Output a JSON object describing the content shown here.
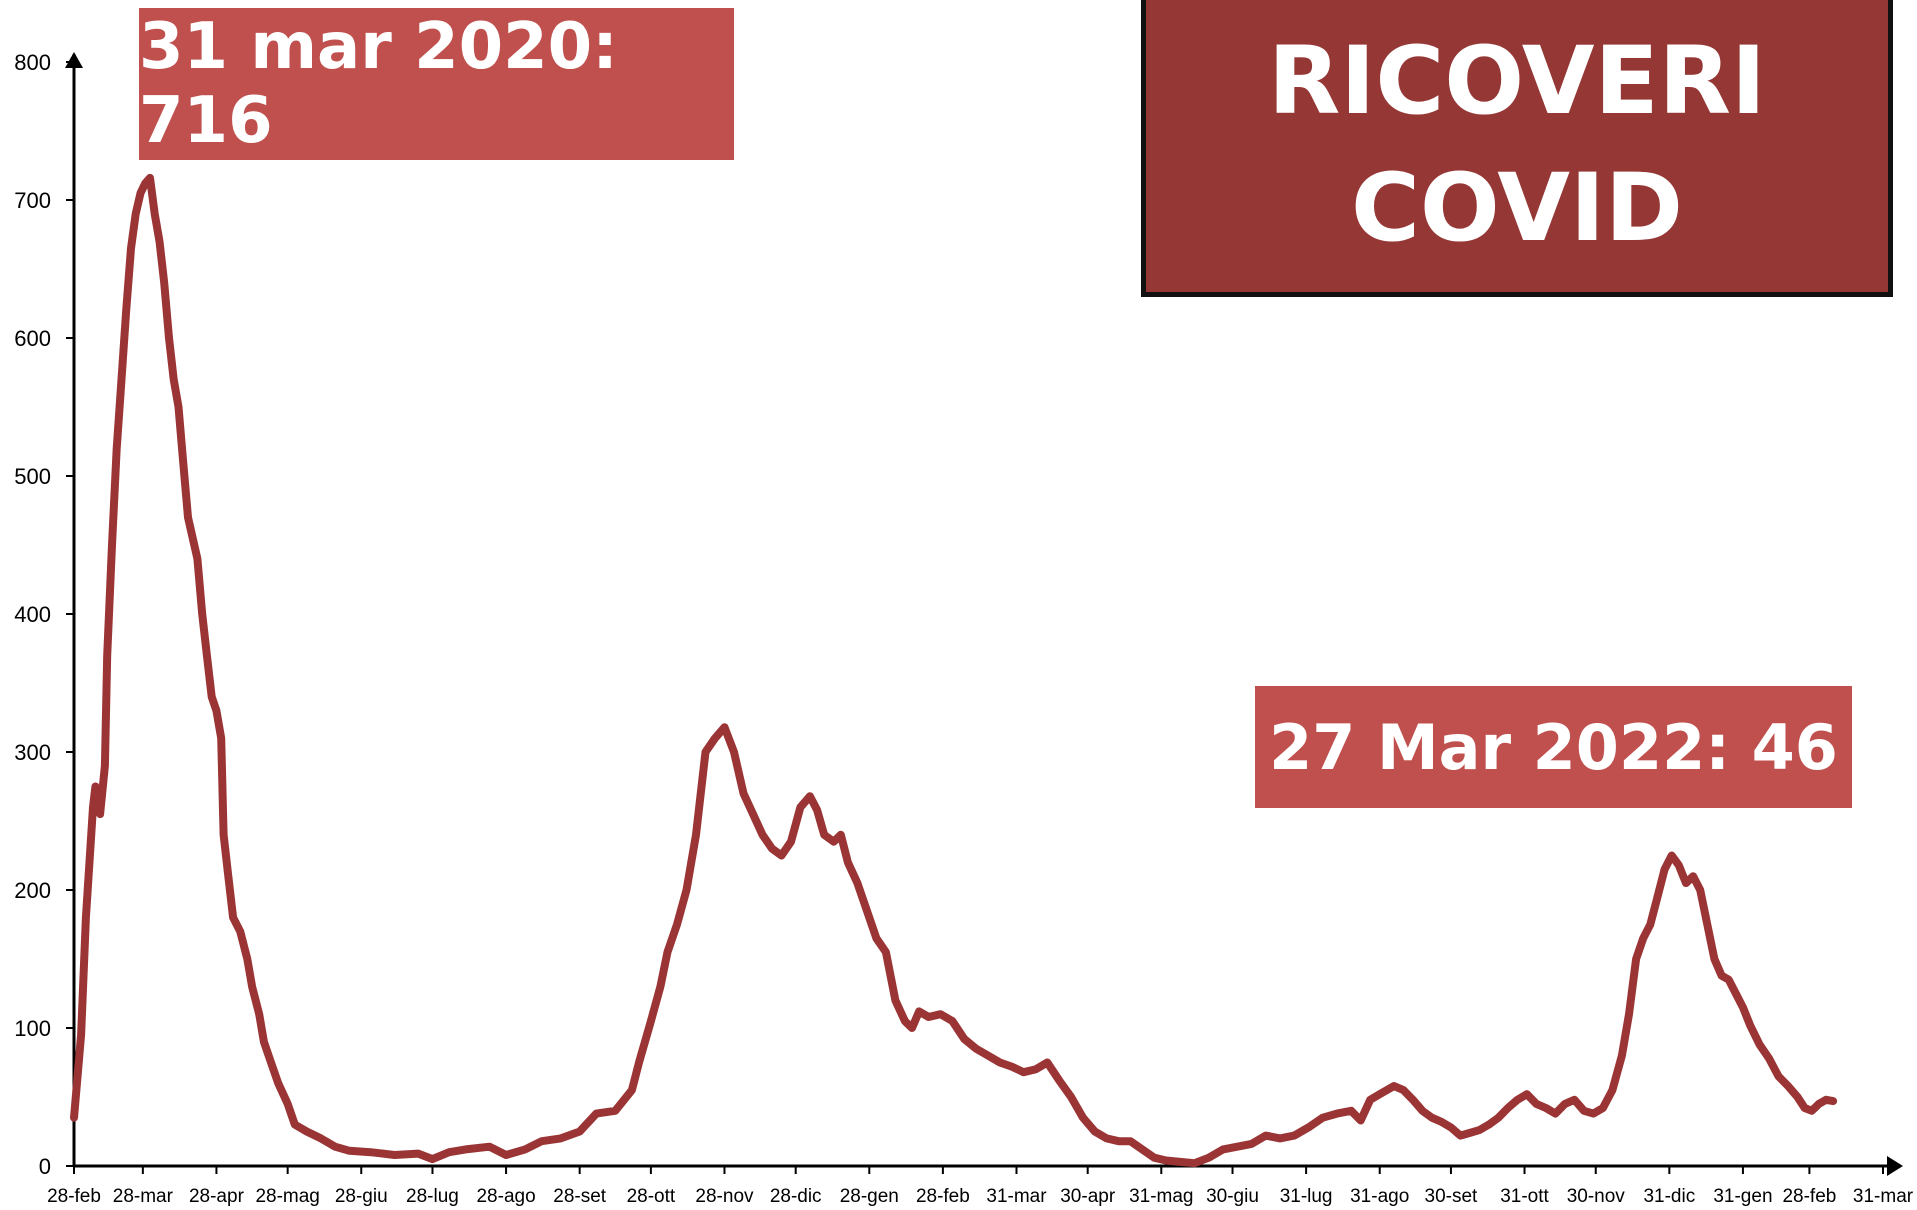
{
  "title": {
    "line1": "RICOVERI",
    "line2": "COVID"
  },
  "annotations": {
    "peak": {
      "label": "31 mar 2020: 716",
      "date_index": 32,
      "value": 716
    },
    "last": {
      "label": "27 Mar 2022: 46",
      "date_index": 758,
      "value": 46
    }
  },
  "colors": {
    "line": "#9b3535",
    "peak_box": "#c0504d",
    "last_box": "#c0504d",
    "title_box": "#953735",
    "axis": "#000000"
  },
  "chart_data": {
    "type": "line",
    "title": "RICOVERI COVID",
    "xlabel": "",
    "ylabel": "",
    "ylim": [
      0,
      800
    ],
    "yticks": [
      0,
      100,
      200,
      300,
      400,
      500,
      600,
      700,
      800
    ],
    "xlim_days": [
      0,
      762
    ],
    "grid": false,
    "x_tick_labels": [
      {
        "label": "28-feb",
        "day": 0
      },
      {
        "label": "28-mar",
        "day": 29
      },
      {
        "label": "28-apr",
        "day": 60
      },
      {
        "label": "28-mag",
        "day": 90
      },
      {
        "label": "28-giu",
        "day": 121
      },
      {
        "label": "28-lug",
        "day": 151
      },
      {
        "label": "28-ago",
        "day": 182
      },
      {
        "label": "28-set",
        "day": 213
      },
      {
        "label": "28-ott",
        "day": 243
      },
      {
        "label": "28-nov",
        "day": 274
      },
      {
        "label": "28-dic",
        "day": 304
      },
      {
        "label": "28-gen",
        "day": 335
      },
      {
        "label": "28-feb",
        "day": 366
      },
      {
        "label": "31-mar",
        "day": 397
      },
      {
        "label": "30-apr",
        "day": 427
      },
      {
        "label": "31-mag",
        "day": 458
      },
      {
        "label": "30-giu",
        "day": 488
      },
      {
        "label": "31-lug",
        "day": 519
      },
      {
        "label": "31-ago",
        "day": 550
      },
      {
        "label": "30-set",
        "day": 580
      },
      {
        "label": "31-ott",
        "day": 611
      },
      {
        "label": "30-nov",
        "day": 641
      },
      {
        "label": "31-dic",
        "day": 672
      },
      {
        "label": "31-gen",
        "day": 703
      },
      {
        "label": "28-feb",
        "day": 731
      },
      {
        "label": "31-mar",
        "day": 762
      }
    ],
    "series": [
      {
        "values": [
          [
            0,
            35
          ],
          [
            3,
            95
          ],
          [
            5,
            180
          ],
          [
            8,
            260
          ],
          [
            9,
            275
          ],
          [
            11,
            255
          ],
          [
            13,
            290
          ],
          [
            14,
            370
          ],
          [
            16,
            450
          ],
          [
            18,
            520
          ],
          [
            20,
            570
          ],
          [
            22,
            620
          ],
          [
            24,
            665
          ],
          [
            26,
            690
          ],
          [
            28,
            705
          ],
          [
            30,
            712
          ],
          [
            32,
            716
          ],
          [
            34,
            690
          ],
          [
            36,
            670
          ],
          [
            38,
            640
          ],
          [
            40,
            600
          ],
          [
            42,
            570
          ],
          [
            44,
            550
          ],
          [
            46,
            510
          ],
          [
            48,
            470
          ],
          [
            50,
            455
          ],
          [
            52,
            440
          ],
          [
            54,
            400
          ],
          [
            56,
            370
          ],
          [
            58,
            340
          ],
          [
            60,
            330
          ],
          [
            62,
            310
          ],
          [
            63,
            240
          ],
          [
            65,
            210
          ],
          [
            67,
            180
          ],
          [
            70,
            170
          ],
          [
            73,
            150
          ],
          [
            75,
            130
          ],
          [
            78,
            110
          ],
          [
            80,
            90
          ],
          [
            83,
            75
          ],
          [
            86,
            60
          ],
          [
            90,
            45
          ],
          [
            93,
            30
          ],
          [
            98,
            25
          ],
          [
            104,
            20
          ],
          [
            110,
            14
          ],
          [
            116,
            11
          ],
          [
            125,
            10
          ],
          [
            135,
            8
          ],
          [
            145,
            9
          ],
          [
            151,
            5
          ],
          [
            158,
            10
          ],
          [
            165,
            12
          ],
          [
            175,
            14
          ],
          [
            182,
            8
          ],
          [
            190,
            12
          ],
          [
            197,
            18
          ],
          [
            205,
            20
          ],
          [
            213,
            25
          ],
          [
            220,
            38
          ],
          [
            228,
            40
          ],
          [
            235,
            55
          ],
          [
            238,
            75
          ],
          [
            243,
            105
          ],
          [
            247,
            130
          ],
          [
            250,
            155
          ],
          [
            254,
            175
          ],
          [
            258,
            200
          ],
          [
            262,
            240
          ],
          [
            266,
            300
          ],
          [
            270,
            310
          ],
          [
            274,
            318
          ],
          [
            278,
            300
          ],
          [
            282,
            270
          ],
          [
            286,
            255
          ],
          [
            290,
            240
          ],
          [
            294,
            230
          ],
          [
            298,
            225
          ],
          [
            302,
            235
          ],
          [
            306,
            260
          ],
          [
            310,
            268
          ],
          [
            313,
            258
          ],
          [
            316,
            240
          ],
          [
            320,
            235
          ],
          [
            323,
            240
          ],
          [
            326,
            220
          ],
          [
            330,
            205
          ],
          [
            334,
            185
          ],
          [
            338,
            165
          ],
          [
            342,
            155
          ],
          [
            346,
            120
          ],
          [
            350,
            105
          ],
          [
            353,
            100
          ],
          [
            356,
            112
          ],
          [
            360,
            108
          ],
          [
            365,
            110
          ],
          [
            370,
            105
          ],
          [
            375,
            92
          ],
          [
            380,
            85
          ],
          [
            385,
            80
          ],
          [
            390,
            75
          ],
          [
            395,
            72
          ],
          [
            400,
            68
          ],
          [
            405,
            70
          ],
          [
            410,
            75
          ],
          [
            415,
            62
          ],
          [
            420,
            50
          ],
          [
            425,
            35
          ],
          [
            430,
            25
          ],
          [
            435,
            20
          ],
          [
            440,
            18
          ],
          [
            445,
            18
          ],
          [
            450,
            12
          ],
          [
            455,
            6
          ],
          [
            460,
            4
          ],
          [
            466,
            3
          ],
          [
            472,
            2
          ],
          [
            478,
            6
          ],
          [
            484,
            12
          ],
          [
            490,
            14
          ],
          [
            496,
            16
          ],
          [
            502,
            22
          ],
          [
            508,
            20
          ],
          [
            514,
            22
          ],
          [
            520,
            28
          ],
          [
            526,
            35
          ],
          [
            532,
            38
          ],
          [
            538,
            40
          ],
          [
            542,
            33
          ],
          [
            546,
            48
          ],
          [
            550,
            52
          ],
          [
            556,
            58
          ],
          [
            560,
            55
          ],
          [
            564,
            48
          ],
          [
            568,
            40
          ],
          [
            572,
            35
          ],
          [
            576,
            32
          ],
          [
            580,
            28
          ],
          [
            584,
            22
          ],
          [
            588,
            24
          ],
          [
            592,
            26
          ],
          [
            596,
            30
          ],
          [
            600,
            35
          ],
          [
            604,
            42
          ],
          [
            608,
            48
          ],
          [
            612,
            52
          ],
          [
            616,
            45
          ],
          [
            620,
            42
          ],
          [
            624,
            38
          ],
          [
            628,
            45
          ],
          [
            632,
            48
          ],
          [
            636,
            40
          ],
          [
            640,
            38
          ],
          [
            644,
            42
          ],
          [
            648,
            55
          ],
          [
            652,
            80
          ],
          [
            655,
            110
          ],
          [
            658,
            150
          ],
          [
            661,
            165
          ],
          [
            664,
            175
          ],
          [
            667,
            195
          ],
          [
            670,
            215
          ],
          [
            673,
            225
          ],
          [
            676,
            218
          ],
          [
            679,
            205
          ],
          [
            682,
            210
          ],
          [
            685,
            200
          ],
          [
            688,
            175
          ],
          [
            691,
            150
          ],
          [
            694,
            138
          ],
          [
            697,
            135
          ],
          [
            700,
            125
          ],
          [
            703,
            115
          ],
          [
            706,
            102
          ],
          [
            710,
            88
          ],
          [
            714,
            78
          ],
          [
            718,
            65
          ],
          [
            722,
            58
          ],
          [
            726,
            50
          ],
          [
            729,
            42
          ],
          [
            732,
            40
          ],
          [
            735,
            45
          ],
          [
            738,
            48
          ],
          [
            741,
            47
          ]
        ]
      }
    ]
  }
}
